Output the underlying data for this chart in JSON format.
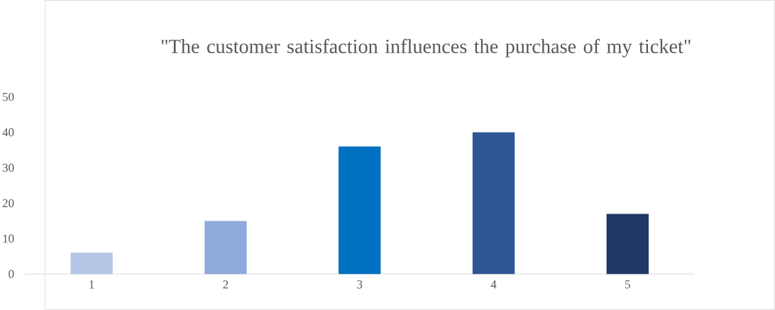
{
  "chart_data": {
    "type": "bar",
    "title": "\"The customer satisfaction influences the purchase of my ticket\"",
    "categories": [
      "1",
      "2",
      "3",
      "4",
      "5"
    ],
    "values": [
      6,
      15,
      36,
      40,
      17
    ],
    "colors": [
      "#b4c7e7",
      "#8faadc",
      "#0070c0",
      "#2f5597",
      "#203864"
    ],
    "ylim": [
      0,
      50
    ],
    "yticks": [
      0,
      10,
      20,
      30,
      40,
      50
    ]
  }
}
